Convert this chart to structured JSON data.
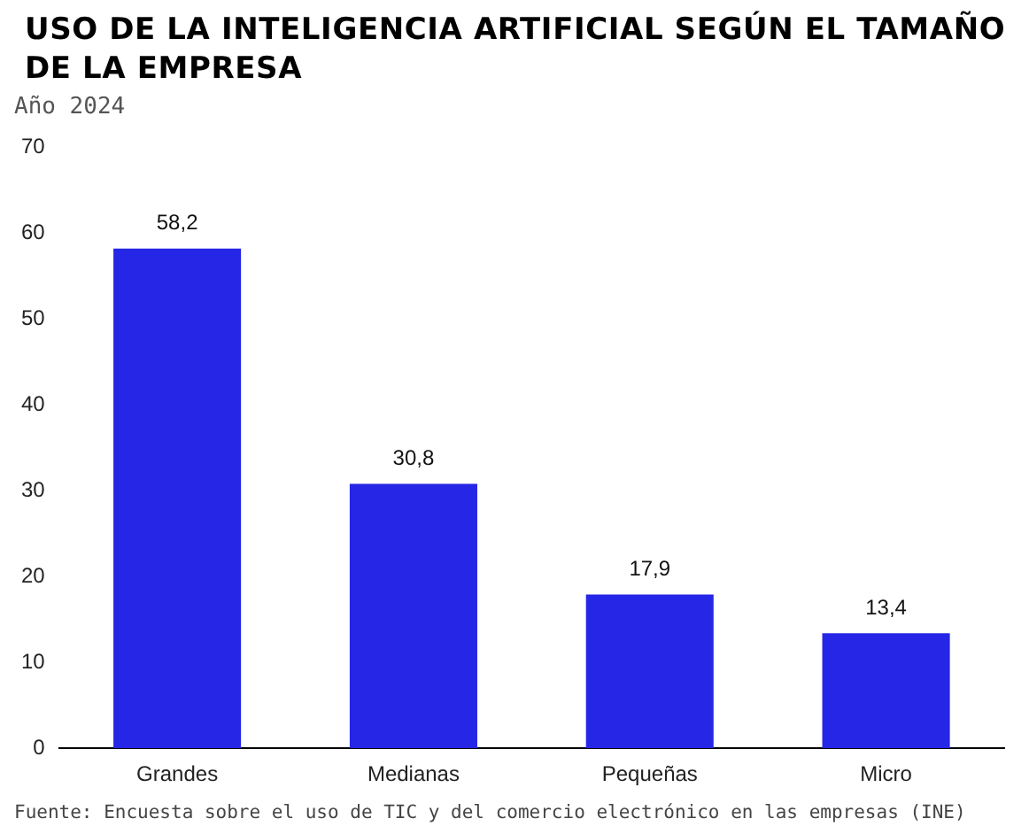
{
  "chart_data": {
    "type": "bar",
    "title": "USO DE LA INTELIGENCIA ARTIFICIAL SEGÚN EL TAMAÑO DE LA EMPRESA",
    "subtitle": "Año 2024",
    "categories": [
      "Grandes",
      "Medianas",
      "Pequeñas",
      "Micro"
    ],
    "values": [
      58.2,
      30.8,
      17.9,
      13.4
    ],
    "value_labels": [
      "58,2",
      "30,8",
      "17,9",
      "13,4"
    ],
    "color": "#2626e6",
    "ylim": [
      0,
      70
    ],
    "yticks": [
      0,
      10,
      20,
      30,
      40,
      50,
      60,
      70
    ],
    "grid": false,
    "legend": false,
    "annotations": [
      "Fuente: Encuesta sobre el uso de TIC y del comercio electrónico en las empresas (INE)"
    ]
  }
}
